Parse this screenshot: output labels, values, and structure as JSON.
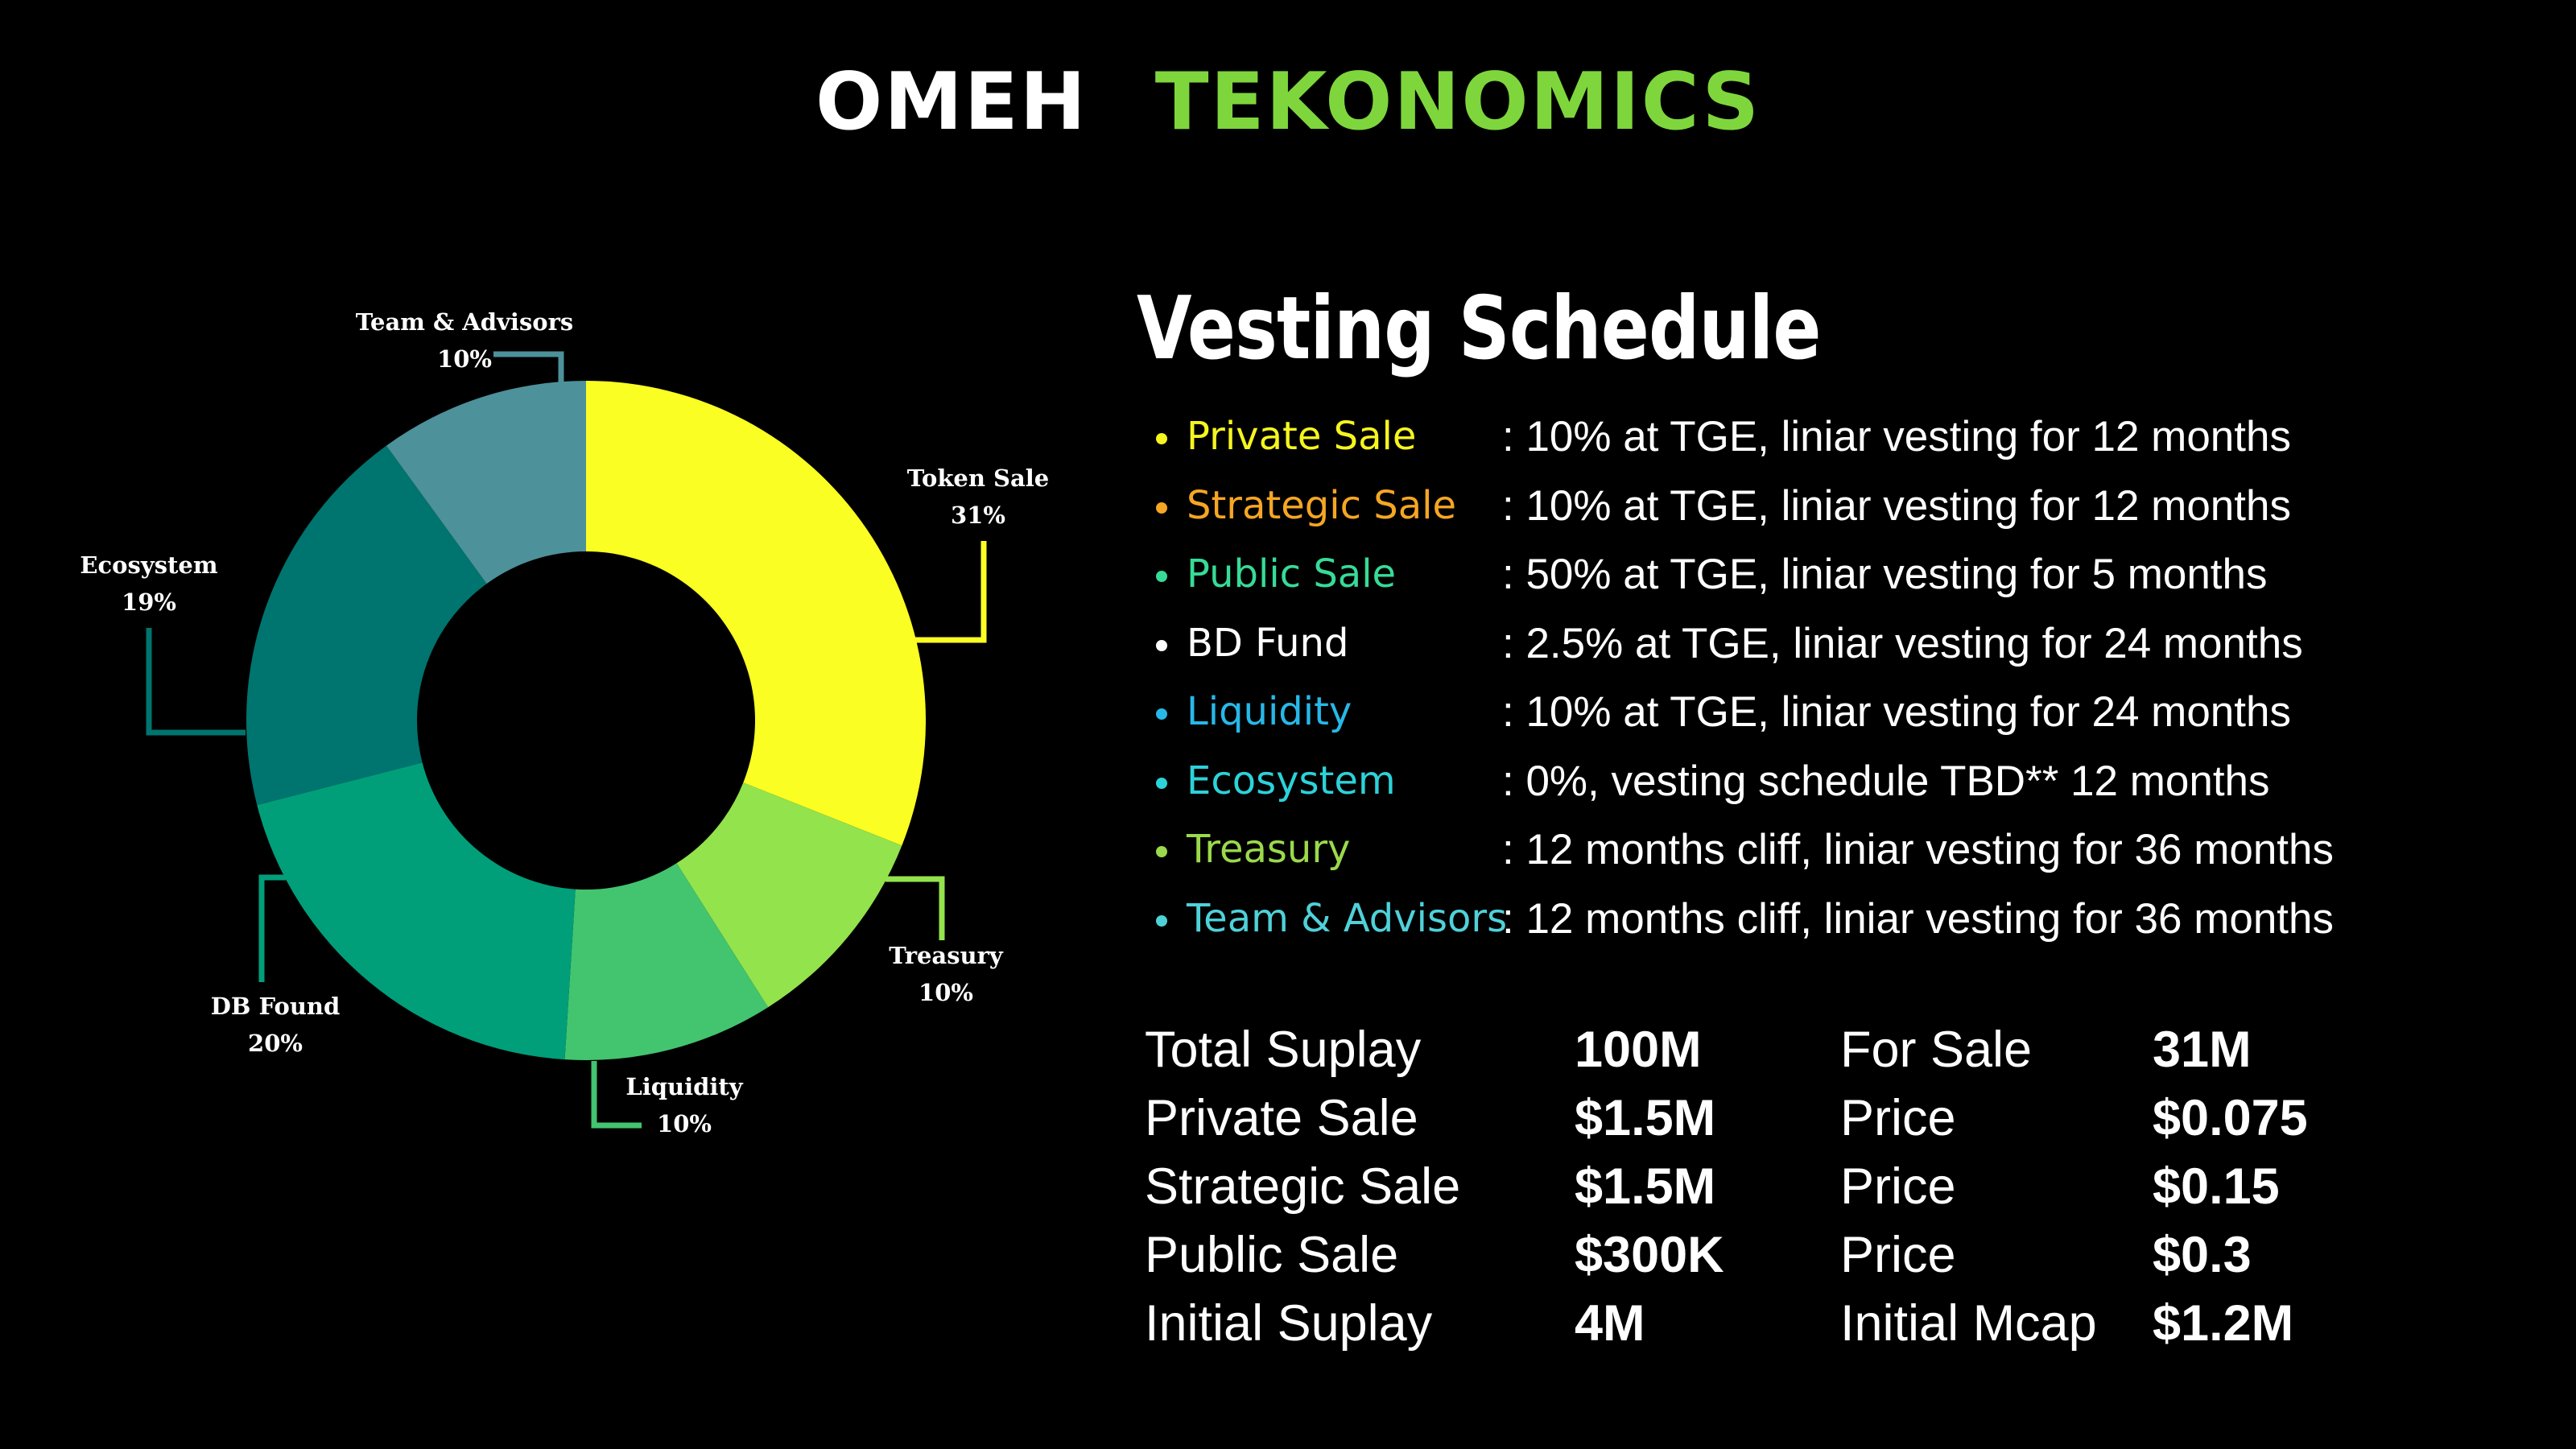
{
  "header": {
    "title_part1": "OMEH",
    "title_part2": "TEKONOMICS"
  },
  "chart_data": {
    "type": "pie",
    "categories": [
      "Token Sale",
      "Treasury",
      "Liquidity",
      "DB Found",
      "Ecosystem",
      "Team & Advisors"
    ],
    "values": [
      31,
      10,
      10,
      20,
      19,
      10
    ],
    "value_labels": [
      "31%",
      "10%",
      "10%",
      "20%",
      "19%",
      "10%"
    ],
    "colors": [
      "#fbfe23",
      "#93e34c",
      "#43c46f",
      "#019e7a",
      "#00746e",
      "#4d919a"
    ],
    "hole": "donut"
  },
  "vesting": {
    "title": "Vesting Schedule",
    "items": [
      {
        "label": "Private Sale",
        "color": "#f5f51f",
        "desc": ": 10% at TGE, liniar vesting for 12 months"
      },
      {
        "label": "Strategic Sale",
        "color": "#f5a623",
        "desc": ": 10% at TGE, liniar vesting for 12 months"
      },
      {
        "label": "Public Sale",
        "color": "#37db97",
        "desc": ": 50% at TGE, liniar vesting for 5 months"
      },
      {
        "label": "BD Fund",
        "color": "#ffffff",
        "desc": ": 2.5% at TGE, liniar vesting for 24 months"
      },
      {
        "label": "Liquidity",
        "color": "#27b8e8",
        "desc": ": 10% at TGE, liniar vesting for 24 months"
      },
      {
        "label": "Ecosystem",
        "color": "#2cd2d9",
        "desc": ": 0%, vesting schedule TBD** 12 months"
      },
      {
        "label": "Treasury",
        "color": "#9bd94c",
        "desc": ": 12 months cliff, liniar vesting for 36 months"
      },
      {
        "label": "Team & Advisors",
        "color": "#4fd1d9",
        "desc": ": 12 months cliff, liniar vesting for 36 months"
      }
    ]
  },
  "stats": {
    "rows": [
      {
        "label": "Total Suplay",
        "value": "100M",
        "label2": "For Sale",
        "value2": "31M"
      },
      {
        "label": "Private Sale",
        "value": "$1.5M",
        "label2": "Price",
        "value2": "$0.075"
      },
      {
        "label": "Strategic Sale",
        "value": "$1.5M",
        "label2": "Price",
        "value2": "$0.15"
      },
      {
        "label": "Public Sale",
        "value": "$300K",
        "label2": "Price",
        "value2": "$0.3"
      },
      {
        "label": "Initial Suplay",
        "value": "4M",
        "label2": "Initial Mcap",
        "value2": "$1.2M"
      }
    ]
  }
}
